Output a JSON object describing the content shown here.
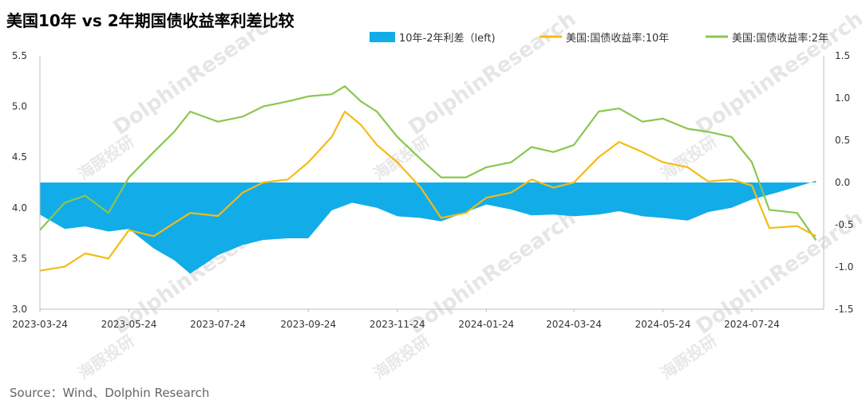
{
  "title": "美国10年 vs 2年期国债收益率利差比较",
  "source": "Source：Wind、Dolphin Research",
  "watermark": {
    "cn": "海豚投研",
    "en": "DolphinResearch"
  },
  "colors": {
    "spread": "#12ace8",
    "y10": "#f5bb14",
    "y2": "#8ac74e",
    "axis": "#bfbfbf",
    "text": "#333333"
  },
  "chart_data": {
    "type": "line",
    "x_tick_labels": [
      "2023-03-24",
      "2023-05-24",
      "2023-07-24",
      "2023-09-24",
      "2023-11-24",
      "2024-01-24",
      "2024-03-24",
      "2024-05-24",
      "2024-07-24"
    ],
    "left_axis": {
      "ylim": [
        3.0,
        5.5
      ],
      "ticks": [
        "3.0",
        "3.5",
        "4.0",
        "4.5",
        "5.0",
        "5.5"
      ]
    },
    "right_axis": {
      "ylim": [
        -1.5,
        1.5
      ],
      "ticks": [
        "-1.5",
        "-1.0",
        "-0.5",
        "0.0",
        "0.5",
        "1.0",
        "1.5"
      ]
    },
    "series": [
      {
        "name": "10年-2年利差（left)",
        "type": "area",
        "axis": "right",
        "x": [
          "2023-03-24",
          "2023-04-10",
          "2023-04-24",
          "2023-05-10",
          "2023-05-24",
          "2023-06-10",
          "2023-06-24",
          "2023-07-05",
          "2023-07-24",
          "2023-08-10",
          "2023-08-24",
          "2023-09-10",
          "2023-09-24",
          "2023-10-10",
          "2023-10-24",
          "2023-11-10",
          "2023-11-24",
          "2023-12-10",
          "2023-12-24",
          "2024-01-10",
          "2024-01-24",
          "2024-02-10",
          "2024-02-24",
          "2024-03-10",
          "2024-03-24",
          "2024-04-10",
          "2024-04-24",
          "2024-05-10",
          "2024-05-24",
          "2024-06-10",
          "2024-06-24",
          "2024-07-10",
          "2024-07-24",
          "2024-08-10",
          "2024-08-24",
          "2024-09-06"
        ],
        "values": [
          -0.38,
          -0.55,
          -0.52,
          -0.58,
          -0.55,
          -0.78,
          -0.92,
          -1.08,
          -0.86,
          -0.74,
          -0.68,
          -0.66,
          -0.66,
          -0.33,
          -0.24,
          -0.3,
          -0.4,
          -0.42,
          -0.46,
          -0.35,
          -0.26,
          -0.32,
          -0.39,
          -0.38,
          -0.4,
          -0.38,
          -0.34,
          -0.4,
          -0.42,
          -0.45,
          -0.35,
          -0.3,
          -0.2,
          -0.12,
          -0.05,
          0.02
        ]
      },
      {
        "name": "美国:国债收益率:10年",
        "type": "line",
        "axis": "left",
        "x": [
          "2023-03-24",
          "2023-04-10",
          "2023-04-24",
          "2023-05-10",
          "2023-05-24",
          "2023-06-10",
          "2023-06-24",
          "2023-07-05",
          "2023-07-24",
          "2023-08-10",
          "2023-08-24",
          "2023-09-10",
          "2023-09-24",
          "2023-10-10",
          "2023-10-19",
          "2023-10-30",
          "2023-11-10",
          "2023-11-24",
          "2023-12-10",
          "2023-12-24",
          "2024-01-10",
          "2024-01-24",
          "2024-02-10",
          "2024-02-24",
          "2024-03-10",
          "2024-03-24",
          "2024-04-10",
          "2024-04-24",
          "2024-05-10",
          "2024-05-24",
          "2024-06-10",
          "2024-06-24",
          "2024-07-10",
          "2024-07-24",
          "2024-08-05",
          "2024-08-24",
          "2024-09-06"
        ],
        "values": [
          3.38,
          3.42,
          3.55,
          3.5,
          3.78,
          3.72,
          3.85,
          3.95,
          3.92,
          4.15,
          4.25,
          4.28,
          4.45,
          4.7,
          4.95,
          4.82,
          4.62,
          4.45,
          4.2,
          3.9,
          3.95,
          4.1,
          4.15,
          4.28,
          4.2,
          4.25,
          4.5,
          4.65,
          4.55,
          4.45,
          4.4,
          4.26,
          4.28,
          4.22,
          3.8,
          3.82,
          3.72
        ]
      },
      {
        "name": "美国:国债收益率:2年",
        "type": "line",
        "axis": "left",
        "x": [
          "2023-03-24",
          "2023-04-10",
          "2023-04-24",
          "2023-05-10",
          "2023-05-24",
          "2023-06-10",
          "2023-06-24",
          "2023-07-05",
          "2023-07-24",
          "2023-08-10",
          "2023-08-24",
          "2023-09-10",
          "2023-09-24",
          "2023-10-10",
          "2023-10-19",
          "2023-10-30",
          "2023-11-10",
          "2023-11-24",
          "2023-12-10",
          "2023-12-24",
          "2024-01-10",
          "2024-01-24",
          "2024-02-10",
          "2024-02-24",
          "2024-03-10",
          "2024-03-24",
          "2024-04-10",
          "2024-04-24",
          "2024-05-10",
          "2024-05-24",
          "2024-06-10",
          "2024-06-24",
          "2024-07-10",
          "2024-07-24",
          "2024-08-05",
          "2024-08-24",
          "2024-09-06"
        ],
        "values": [
          3.78,
          4.05,
          4.12,
          3.95,
          4.3,
          4.55,
          4.75,
          4.95,
          4.85,
          4.9,
          5.0,
          5.05,
          5.1,
          5.12,
          5.2,
          5.05,
          4.95,
          4.7,
          4.48,
          4.3,
          4.3,
          4.4,
          4.45,
          4.6,
          4.55,
          4.62,
          4.95,
          4.98,
          4.85,
          4.88,
          4.78,
          4.75,
          4.7,
          4.45,
          3.98,
          3.95,
          3.68
        ]
      }
    ],
    "legend_position": "top",
    "grid": false
  }
}
